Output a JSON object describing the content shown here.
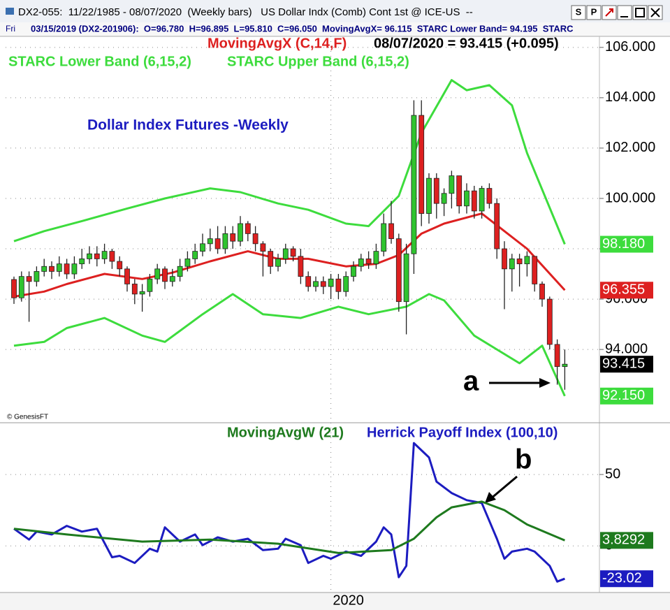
{
  "header": {
    "title": "DX2-055:  11/22/1985 - 08/07/2020  (Weekly bars)   US Dollar Indx (Comb) Cont 1st @ ICE-US  --",
    "buttons": [
      "S",
      "P"
    ],
    "day": "Fri",
    "info": "03/15/2019 (DX2-201906):  O=96.780  H=96.895  L=95.810  C=96.050  MovingAvgX= 96.115  STARC Lower Band= 94.195  STARC",
    "credit": "© GenesisFT"
  },
  "chart_data": [
    {
      "type": "candlestick",
      "title": "Dollar Index Futures -Weekly",
      "legend_value": "08/07/2020 = 93.415 (+0.095)",
      "annotations": [
        "a"
      ],
      "categories": [
        null,
        null,
        null,
        null,
        null,
        null,
        null,
        null,
        null,
        null,
        null,
        null,
        null,
        null,
        null,
        null,
        null,
        null,
        null,
        null,
        null,
        null,
        null,
        null,
        null,
        null,
        null,
        null,
        null,
        null,
        null,
        null,
        null,
        null,
        null,
        null,
        null,
        null,
        null,
        null,
        null,
        null,
        "2020",
        null,
        null,
        null,
        null,
        null,
        null,
        null,
        null,
        null,
        null,
        null,
        null,
        null,
        null,
        null,
        null,
        null,
        null,
        null,
        null,
        null,
        null,
        null,
        null,
        null,
        null,
        null,
        null,
        null,
        null,
        null
      ],
      "ohlc": {
        "up_color": "#2fc42f",
        "down_color": "#dd2020",
        "open": [
          96.78,
          96.05,
          96.9,
          96.7,
          97.1,
          97.3,
          97.1,
          97.4,
          97.0,
          97.4,
          97.6,
          97.8,
          97.6,
          97.9,
          97.5,
          97.2,
          96.6,
          96.2,
          96.3,
          96.8,
          97.2,
          96.7,
          96.9,
          97.3,
          97.6,
          97.9,
          98.2,
          98.4,
          98.0,
          98.6,
          98.3,
          99.0,
          98.6,
          98.2,
          97.9,
          97.3,
          97.6,
          98.0,
          97.7,
          96.9,
          96.5,
          96.7,
          96.5,
          96.8,
          96.3,
          96.9,
          97.3,
          97.6,
          97.4,
          97.9,
          99.0,
          98.4,
          95.9,
          97.8,
          103.3,
          99.4,
          100.8,
          99.8,
          100.2,
          100.9,
          99.7,
          100.3,
          99.5,
          100.4,
          99.8,
          98.0,
          97.2,
          97.6,
          97.4,
          97.7,
          96.6,
          96.0,
          94.2,
          93.32
        ],
        "high": [
          96.895,
          97.1,
          97.1,
          97.3,
          97.6,
          97.5,
          97.7,
          97.6,
          97.7,
          98.0,
          98.1,
          98.1,
          98.2,
          98.0,
          97.7,
          97.3,
          96.8,
          96.6,
          97.0,
          97.4,
          97.3,
          97.2,
          97.6,
          97.9,
          98.2,
          98.6,
          98.8,
          98.9,
          98.9,
          98.9,
          99.3,
          99.1,
          98.9,
          98.3,
          98.0,
          97.8,
          98.2,
          98.1,
          98.0,
          97.1,
          96.9,
          96.9,
          97.0,
          97.0,
          97.1,
          97.5,
          97.8,
          97.9,
          98.2,
          99.4,
          99.9,
          98.6,
          98.2,
          103.9,
          103.9,
          101.0,
          101.0,
          100.4,
          101.1,
          100.9,
          100.6,
          100.5,
          100.5,
          100.6,
          100.0,
          98.3,
          97.8,
          97.8,
          97.9,
          97.7,
          96.7,
          96.1,
          94.4,
          94.0
        ],
        "low": [
          95.81,
          95.9,
          95.1,
          96.5,
          96.9,
          96.8,
          96.9,
          96.8,
          96.8,
          97.2,
          97.4,
          97.3,
          97.4,
          97.2,
          96.9,
          96.3,
          95.8,
          95.5,
          96.1,
          96.6,
          96.4,
          96.5,
          96.7,
          97.1,
          97.4,
          97.7,
          97.9,
          97.8,
          97.8,
          98.0,
          98.1,
          98.3,
          97.9,
          96.9,
          97.0,
          97.1,
          97.4,
          97.5,
          96.6,
          96.3,
          96.3,
          96.2,
          96.0,
          96.0,
          96.1,
          96.7,
          97.1,
          97.2,
          97.2,
          97.7,
          98.2,
          95.5,
          94.6,
          97.0,
          98.9,
          99.0,
          99.2,
          99.3,
          99.6,
          99.4,
          99.4,
          99.2,
          99.2,
          99.6,
          97.6,
          95.6,
          96.3,
          96.5,
          96.9,
          96.3,
          95.7,
          94.0,
          92.6,
          92.4
        ],
        "close": [
          96.05,
          96.9,
          96.7,
          97.1,
          97.3,
          97.1,
          97.4,
          97.0,
          97.4,
          97.6,
          97.8,
          97.6,
          97.9,
          97.5,
          97.2,
          96.6,
          96.2,
          96.3,
          96.8,
          97.2,
          96.7,
          96.9,
          97.3,
          97.6,
          97.9,
          98.2,
          98.4,
          98.0,
          98.6,
          98.3,
          99.0,
          98.6,
          98.2,
          97.9,
          97.3,
          97.6,
          98.0,
          97.7,
          96.9,
          96.5,
          96.7,
          96.5,
          96.8,
          96.3,
          96.9,
          97.3,
          97.6,
          97.4,
          97.9,
          99.0,
          98.4,
          95.9,
          97.8,
          103.3,
          99.4,
          100.8,
          99.8,
          100.2,
          100.9,
          99.7,
          100.3,
          99.5,
          100.4,
          99.8,
          98.0,
          97.2,
          97.6,
          97.4,
          97.7,
          96.6,
          96.0,
          94.2,
          93.32,
          93.415
        ]
      },
      "series": [
        {
          "name": "MovingAvgX (C,14,F)",
          "color": "#dd2020",
          "x": [
            0,
            4,
            7,
            12,
            17,
            21,
            26,
            31,
            35,
            39,
            44,
            48,
            51,
            54,
            57,
            62,
            65,
            68,
            73
          ],
          "values": [
            96.1,
            96.3,
            96.6,
            97.0,
            96.8,
            97.05,
            97.5,
            97.9,
            97.6,
            97.6,
            97.3,
            97.4,
            97.75,
            98.6,
            99.0,
            99.4,
            98.7,
            98.0,
            96.355
          ],
          "value_labels": [
            null,
            null,
            null,
            null,
            null,
            null,
            null,
            null,
            null,
            null,
            null,
            null,
            null,
            null,
            null,
            null,
            null,
            null,
            "96.355"
          ]
        },
        {
          "name": "STARC Lower Band (6,15,2)",
          "color": "#3ddc3d",
          "x": [
            0,
            4,
            7,
            12,
            17,
            20,
            25,
            29,
            33,
            38,
            43,
            47,
            52,
            55,
            57,
            61,
            64,
            67,
            70,
            73
          ],
          "values": [
            94.15,
            94.3,
            94.85,
            95.25,
            94.55,
            94.3,
            95.4,
            96.2,
            95.4,
            95.25,
            95.7,
            95.4,
            95.7,
            96.2,
            95.95,
            94.55,
            94.0,
            93.45,
            94.15,
            92.15
          ],
          "value_labels": [
            null,
            null,
            null,
            null,
            null,
            null,
            null,
            null,
            null,
            null,
            null,
            null,
            null,
            null,
            null,
            null,
            null,
            null,
            null,
            "92.150"
          ]
        },
        {
          "name": "STARC Upper Band (6,15,2)",
          "color": "#3ddc3d",
          "x": [
            0,
            4,
            9,
            15,
            20,
            26,
            30,
            35,
            39,
            44,
            47,
            51,
            54,
            58,
            60,
            63,
            66,
            68,
            73
          ],
          "values": [
            98.3,
            98.7,
            99.1,
            99.6,
            100.0,
            100.4,
            100.25,
            99.8,
            99.55,
            99.0,
            98.9,
            100.1,
            102.6,
            104.7,
            104.3,
            104.5,
            103.7,
            101.8,
            98.18
          ],
          "value_labels": [
            null,
            null,
            null,
            null,
            null,
            null,
            null,
            null,
            null,
            null,
            null,
            null,
            null,
            null,
            null,
            null,
            null,
            null,
            "98.180"
          ]
        }
      ],
      "ylim": [
        91.2,
        106.55
      ],
      "yticks": [
        {
          "value": 94,
          "label": "94.000"
        },
        {
          "value": 96,
          "label": "96.000"
        },
        {
          "value": 98,
          "label": "98.000"
        },
        {
          "value": 100,
          "label": "100.000"
        },
        {
          "value": 102,
          "label": "102.000"
        },
        {
          "value": 104,
          "label": "104.000"
        },
        {
          "value": 106,
          "label": "106.000"
        }
      ],
      "grid": true
    },
    {
      "type": "line",
      "annotations": [
        "b"
      ],
      "series": [
        {
          "name": "Herrick Payoff Index (100,10)",
          "color": "#1c1cc0",
          "x": [
            0,
            2,
            3,
            5,
            7,
            9,
            11,
            13,
            14,
            16,
            18,
            19,
            20,
            22,
            24,
            25,
            27,
            29,
            31,
            33,
            35,
            36,
            38,
            39,
            41,
            42,
            44,
            46,
            48,
            49,
            50,
            51,
            52,
            53,
            55,
            56,
            58,
            60,
            62,
            64,
            65,
            66,
            68,
            69,
            71,
            72,
            73
          ],
          "values": [
            12,
            4.4,
            10,
            8,
            14,
            10,
            12,
            -8,
            -7,
            -12,
            -2,
            -4,
            13,
            3,
            8,
            0.5,
            6,
            3,
            5,
            -3,
            -2,
            5,
            0.5,
            -12,
            -7,
            -9,
            -4,
            -7,
            3,
            13,
            8,
            -22,
            -14,
            72,
            62,
            45,
            37,
            32,
            30,
            5,
            -9,
            -4,
            -2,
            -4,
            -14,
            -25,
            -23.02
          ]
        },
        {
          "name": "MovingAvgW (21)",
          "color": "#1e7a1e",
          "x": [
            0,
            7,
            17,
            26,
            35,
            43,
            50,
            53,
            56,
            58,
            62,
            65,
            68,
            73
          ],
          "values": [
            12,
            8,
            3,
            4.4,
            1.5,
            -5,
            -3,
            5,
            20,
            27,
            31,
            25,
            15,
            3.8292
          ]
        }
      ],
      "xlim": [
        0,
        73
      ],
      "ylim": [
        -32.7,
        84.8
      ],
      "yticks": [
        0,
        50
      ],
      "grid": true
    }
  ]
}
